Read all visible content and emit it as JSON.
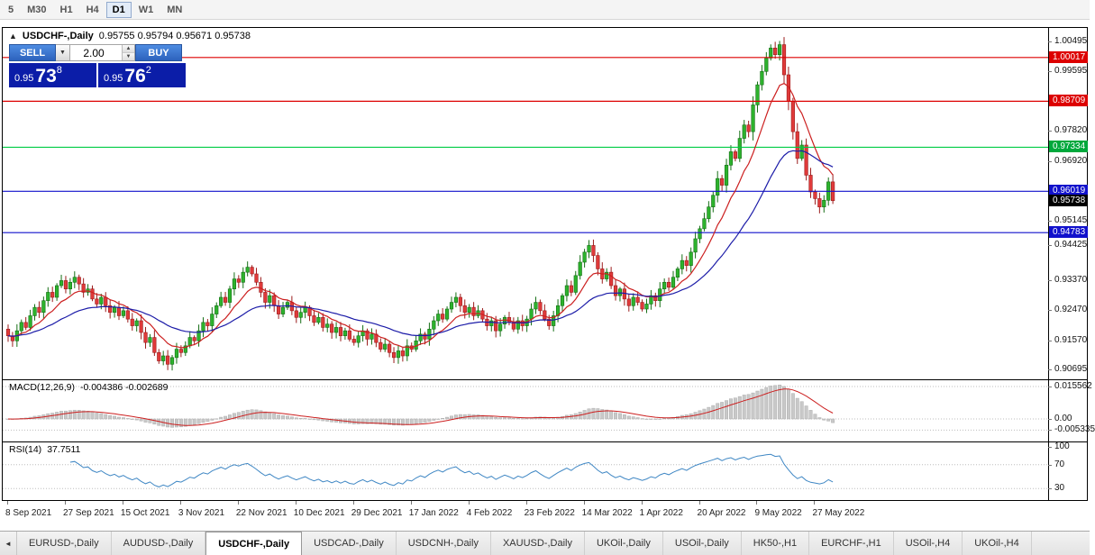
{
  "toolbar": {
    "timeframes": [
      "5",
      "M30",
      "H1",
      "H4",
      "D1",
      "W1",
      "MN"
    ],
    "active": "D1"
  },
  "chart": {
    "collapse_icon": "▲",
    "title": "USDCHF-,Daily",
    "ohlc": "0.95755 0.95794 0.95671 0.95738",
    "trade_panel": {
      "sell_label": "SELL",
      "buy_label": "BUY",
      "volume": "2.00",
      "dropdown_icon": "▼",
      "spinner_up_icon": "▲",
      "spinner_down_icon": "▼",
      "sell_quote": {
        "prefix": "0.95",
        "big": "73",
        "sup": "8"
      },
      "buy_quote": {
        "prefix": "0.95",
        "big": "76",
        "sup": "2"
      }
    },
    "hlines": [
      {
        "value": 1.00017,
        "color": "#dd0000"
      },
      {
        "value": 0.98709,
        "color": "#dd0000"
      },
      {
        "value": 0.97334,
        "color": "#00cc44"
      },
      {
        "value": 0.96019,
        "color": "#1111cc"
      },
      {
        "value": 0.94783,
        "color": "#1111cc"
      }
    ],
    "price_axis": {
      "ticks": [
        "1.00495",
        "0.99595",
        "0.97820",
        "0.96920",
        "0.95145",
        "0.94425",
        "0.93370",
        "0.92470",
        "0.91570",
        "0.90695"
      ],
      "badges": [
        {
          "label": "1.00017",
          "value": 1.00017,
          "color": "#dd0000"
        },
        {
          "label": "0.98709",
          "value": 0.98709,
          "color": "#dd0000"
        },
        {
          "label": "0.97334",
          "value": 0.97334,
          "color": "#00a83c"
        },
        {
          "label": "0.96019",
          "value": 0.96019,
          "color": "#1111cc"
        },
        {
          "label": "0.95738",
          "value": 0.95738,
          "color": "#000000"
        },
        {
          "label": "0.94783",
          "value": 0.94783,
          "color": "#1111cc"
        }
      ]
    },
    "time_axis": [
      "8 Sep 2021",
      "27 Sep 2021",
      "15 Oct 2021",
      "3 Nov 2021",
      "22 Nov 2021",
      "10 Dec 2021",
      "29 Dec 2021",
      "17 Jan 2022",
      "4 Feb 2022",
      "23 Feb 2022",
      "14 Mar 2022",
      "1 Apr 2022",
      "20 Apr 2022",
      "9 May 2022",
      "27 May 2022"
    ]
  },
  "chart_data": {
    "type": "candlestick",
    "symbol": "USDCHF",
    "timeframe": "Daily",
    "price_max": 1.009,
    "price_min": 0.904,
    "bar_spacing": 4.92,
    "label_step": 13,
    "ma_fast_period": 10,
    "ma_slow_period": 30,
    "colors": {
      "up_fill": "#2db32d",
      "up_stroke": "#156e15",
      "down_fill": "#e03a3a",
      "down_stroke": "#9b1c1c",
      "ma_fast": "#cc2020",
      "ma_slow": "#1c1ca8"
    },
    "closes": [
      0.917,
      0.9155,
      0.9185,
      0.921,
      0.9195,
      0.923,
      0.9255,
      0.924,
      0.9275,
      0.93,
      0.9285,
      0.932,
      0.9335,
      0.931,
      0.933,
      0.9345,
      0.9325,
      0.93,
      0.931,
      0.928,
      0.9265,
      0.9285,
      0.926,
      0.924,
      0.9255,
      0.923,
      0.9245,
      0.922,
      0.92,
      0.9215,
      0.918,
      0.915,
      0.9165,
      0.912,
      0.9095,
      0.911,
      0.9085,
      0.9105,
      0.913,
      0.912,
      0.914,
      0.9165,
      0.9155,
      0.9185,
      0.921,
      0.92,
      0.9235,
      0.926,
      0.9285,
      0.927,
      0.931,
      0.934,
      0.933,
      0.936,
      0.9375,
      0.9355,
      0.933,
      0.93,
      0.927,
      0.929,
      0.926,
      0.9235,
      0.9255,
      0.927,
      0.9245,
      0.9225,
      0.924,
      0.9255,
      0.923,
      0.921,
      0.9225,
      0.9195,
      0.9205,
      0.918,
      0.9195,
      0.917,
      0.9185,
      0.916,
      0.915,
      0.917,
      0.9185,
      0.916,
      0.9175,
      0.915,
      0.913,
      0.9145,
      0.912,
      0.9105,
      0.9125,
      0.911,
      0.914,
      0.913,
      0.9155,
      0.9175,
      0.916,
      0.919,
      0.9215,
      0.9235,
      0.922,
      0.925,
      0.927,
      0.9285,
      0.926,
      0.924,
      0.9255,
      0.923,
      0.9245,
      0.922,
      0.92,
      0.9215,
      0.9185,
      0.9205,
      0.9225,
      0.921,
      0.919,
      0.9215,
      0.92,
      0.922,
      0.925,
      0.927,
      0.9245,
      0.922,
      0.92,
      0.923,
      0.926,
      0.929,
      0.932,
      0.93,
      0.935,
      0.939,
      0.942,
      0.944,
      0.941,
      0.937,
      0.934,
      0.936,
      0.932,
      0.929,
      0.931,
      0.928,
      0.926,
      0.9285,
      0.927,
      0.925,
      0.9265,
      0.929,
      0.9275,
      0.931,
      0.933,
      0.9315,
      0.9345,
      0.937,
      0.9395,
      0.938,
      0.942,
      0.946,
      0.949,
      0.952,
      0.9555,
      0.959,
      0.964,
      0.962,
      0.968,
      0.972,
      0.97,
      0.976,
      0.98,
      0.978,
      0.986,
      0.992,
      0.996,
      1.0,
      1.003,
      1.001,
      1.004,
      0.995,
      0.987,
      0.978,
      0.97,
      0.974,
      0.965,
      0.96,
      0.958,
      0.9555,
      0.9575,
      0.963,
      0.95738
    ]
  },
  "macd": {
    "label": "MACD(12,26,9)",
    "values": "-0.004386 -0.002689",
    "signal_color": "#cc2020",
    "hist_fill": "#c9c9c9",
    "hist_stroke": "#adadad",
    "ticks": [
      {
        "label": "0.015562",
        "value": 0.015562
      },
      {
        "label": "0.00",
        "value": 0
      },
      {
        "label": "-0.005335",
        "value": -0.005335
      }
    ]
  },
  "rsi": {
    "label": "RSI(14)",
    "value": "37.7511",
    "line_color": "#3f87c4",
    "levels": [
      70,
      30
    ],
    "ticks": [
      {
        "label": "100",
        "value": 100
      },
      {
        "label": "70",
        "value": 70
      },
      {
        "label": "30",
        "value": 30
      }
    ]
  },
  "tabs": {
    "scroll_left_icon": "◄",
    "active_index": 2,
    "items": [
      "EURUSD-,Daily",
      "AUDUSD-,Daily",
      "USDCHF-,Daily",
      "USDCAD-,Daily",
      "USDCNH-,Daily",
      "XAUUSD-,Daily",
      "UKOil-,Daily",
      "USOil-,Daily",
      "HK50-,H1",
      "EURCHF-,H1",
      "USOil-,H4",
      "UKOil-,H4"
    ]
  }
}
